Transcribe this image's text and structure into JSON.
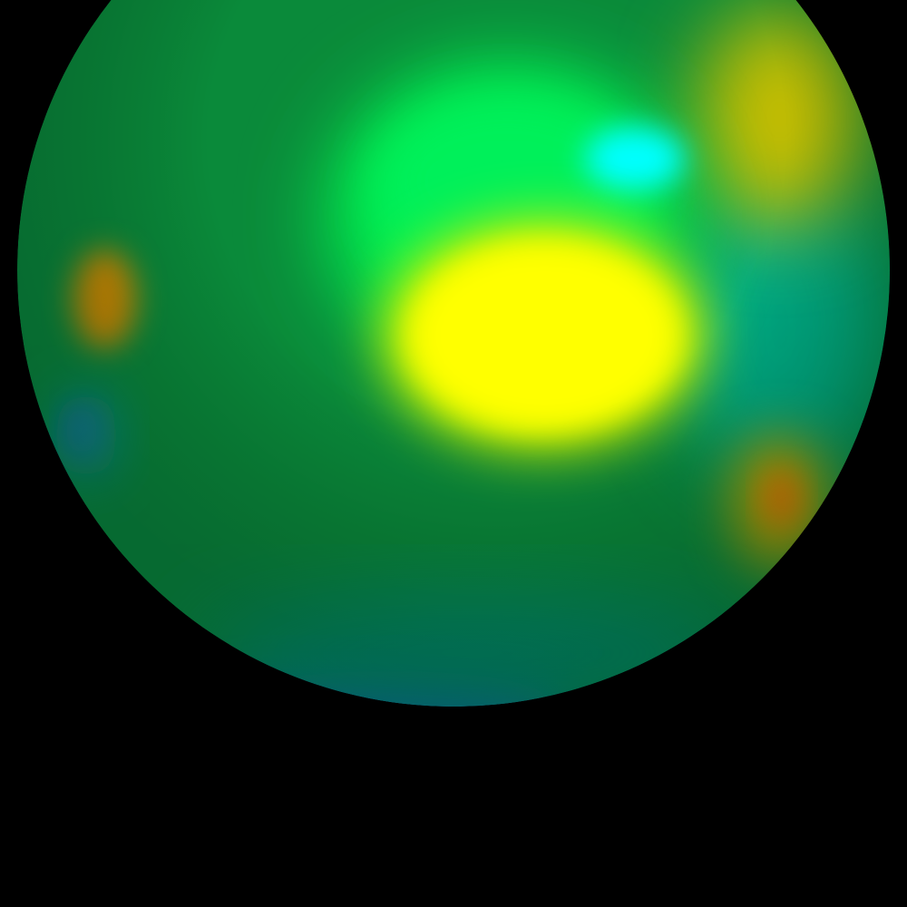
{
  "scene": {
    "background_color": "#000000",
    "object": "sphere",
    "colormap": [
      "#0050c8",
      "#008c46",
      "#00e650",
      "#00ffff",
      "#ffff00",
      "#ff8c00"
    ]
  },
  "regions": [
    {
      "name": "yellow-hotspot",
      "color": "#ffff00"
    },
    {
      "name": "bright-green-band",
      "color": "#00f050"
    },
    {
      "name": "cyan-spot",
      "color": "#00ffff"
    },
    {
      "name": "olive-patch-upper-right",
      "color": "#c8be00"
    },
    {
      "name": "orange-spot-left",
      "color": "#d28c00"
    },
    {
      "name": "blue-spot-left",
      "color": "#0a50c8"
    },
    {
      "name": "orange-spot-right",
      "color": "#e67800"
    },
    {
      "name": "teal-region-right",
      "color": "#00aa82"
    },
    {
      "name": "blue-rim-bottom",
      "color": "#0a64be"
    }
  ]
}
